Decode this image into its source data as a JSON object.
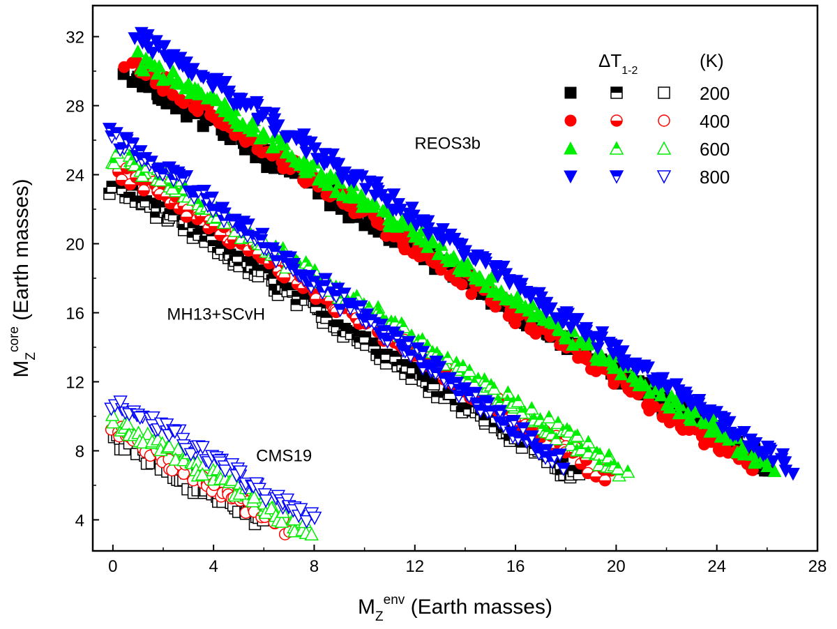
{
  "chart_data": {
    "type": "scatter",
    "xlabel": {
      "main": "M",
      "sub": "Z",
      "sup": "env",
      "rest": " (Earth masses)"
    },
    "ylabel": {
      "main": "M",
      "sub": "Z",
      "sup": "core",
      "rest": " (Earth masses)"
    },
    "xlim": [
      -0.8,
      28
    ],
    "ylim": [
      2.2,
      33.8
    ],
    "xticks": [
      0,
      4,
      8,
      12,
      16,
      20,
      24,
      28
    ],
    "yticks": [
      4,
      8,
      12,
      16,
      20,
      24,
      28,
      32
    ],
    "annotations": [
      {
        "text": "REOS3b",
        "x": 13.3,
        "y": 25.5
      },
      {
        "text": "MH13+SCvH",
        "x": 4.1,
        "y": 15.6
      },
      {
        "text": "CMS19",
        "x": 6.8,
        "y": 7.4
      }
    ],
    "legend": {
      "title_main": "ΔT",
      "title_sub": "1-2",
      "unit": "(K)",
      "position": "top-right",
      "rows": [
        {
          "label": "200",
          "color": "#000000",
          "marker": "square"
        },
        {
          "label": "400",
          "color": "#ff0000",
          "marker": "circle"
        },
        {
          "label": "600",
          "color": "#00ee00",
          "marker": "triangle-up"
        },
        {
          "label": "800",
          "color": "#0000ff",
          "marker": "triangle-down"
        }
      ],
      "columns": [
        "REOS3b (filled)",
        "MH13+SCvH (half-filled)",
        "CMS19 (open)"
      ]
    },
    "groups": [
      {
        "eos": "REOS3b",
        "fill": "filled",
        "series": [
          {
            "dT": 200,
            "color": "#000000",
            "marker": "square",
            "x": [
              0.6,
              26.0
            ],
            "y": [
              30.0,
              7.1
            ]
          },
          {
            "dT": 400,
            "color": "#ff0000",
            "marker": "circle",
            "x": [
              0.5,
              25.5
            ],
            "y": [
              30.7,
              6.9
            ]
          },
          {
            "dT": 600,
            "color": "#00ee00",
            "marker": "triangle-up",
            "x": [
              1.0,
              26.2
            ],
            "y": [
              31.0,
              7.1
            ]
          },
          {
            "dT": 800,
            "color": "#0000ff",
            "marker": "triangle-down",
            "x": [
              0.9,
              27.0
            ],
            "y": [
              32.3,
              7.0
            ]
          }
        ]
      },
      {
        "eos": "MH13+SCvH",
        "fill": "half",
        "series": [
          {
            "dT": 200,
            "color": "#000000",
            "marker": "square",
            "x": [
              0.0,
              18.5
            ],
            "y": [
              23.6,
              6.5
            ]
          },
          {
            "dT": 400,
            "color": "#ff0000",
            "marker": "circle",
            "x": [
              0.3,
              19.7
            ],
            "y": [
              24.5,
              6.5
            ]
          },
          {
            "dT": 600,
            "color": "#00ee00",
            "marker": "triangle-up",
            "x": [
              0.1,
              20.3
            ],
            "y": [
              25.5,
              6.7
            ]
          },
          {
            "dT": 800,
            "color": "#0000ff",
            "marker": "triangle-down",
            "x": [
              0.0,
              17.8
            ],
            "y": [
              26.5,
              7.3
            ]
          }
        ]
      },
      {
        "eos": "CMS19",
        "fill": "open",
        "series": [
          {
            "dT": 200,
            "color": "#000000",
            "marker": "square",
            "x": [
              0.0,
              6.0
            ],
            "y": [
              8.8,
              3.7
            ]
          },
          {
            "dT": 400,
            "color": "#ff0000",
            "marker": "circle",
            "x": [
              0.0,
              6.9
            ],
            "y": [
              9.3,
              3.5
            ]
          },
          {
            "dT": 600,
            "color": "#00ee00",
            "marker": "triangle-up",
            "x": [
              0.0,
              7.8
            ],
            "y": [
              9.9,
              3.4
            ]
          },
          {
            "dT": 800,
            "color": "#0000ff",
            "marker": "triangle-down",
            "x": [
              0.0,
              7.9
            ],
            "y": [
              11.0,
              4.0
            ]
          }
        ]
      }
    ]
  }
}
